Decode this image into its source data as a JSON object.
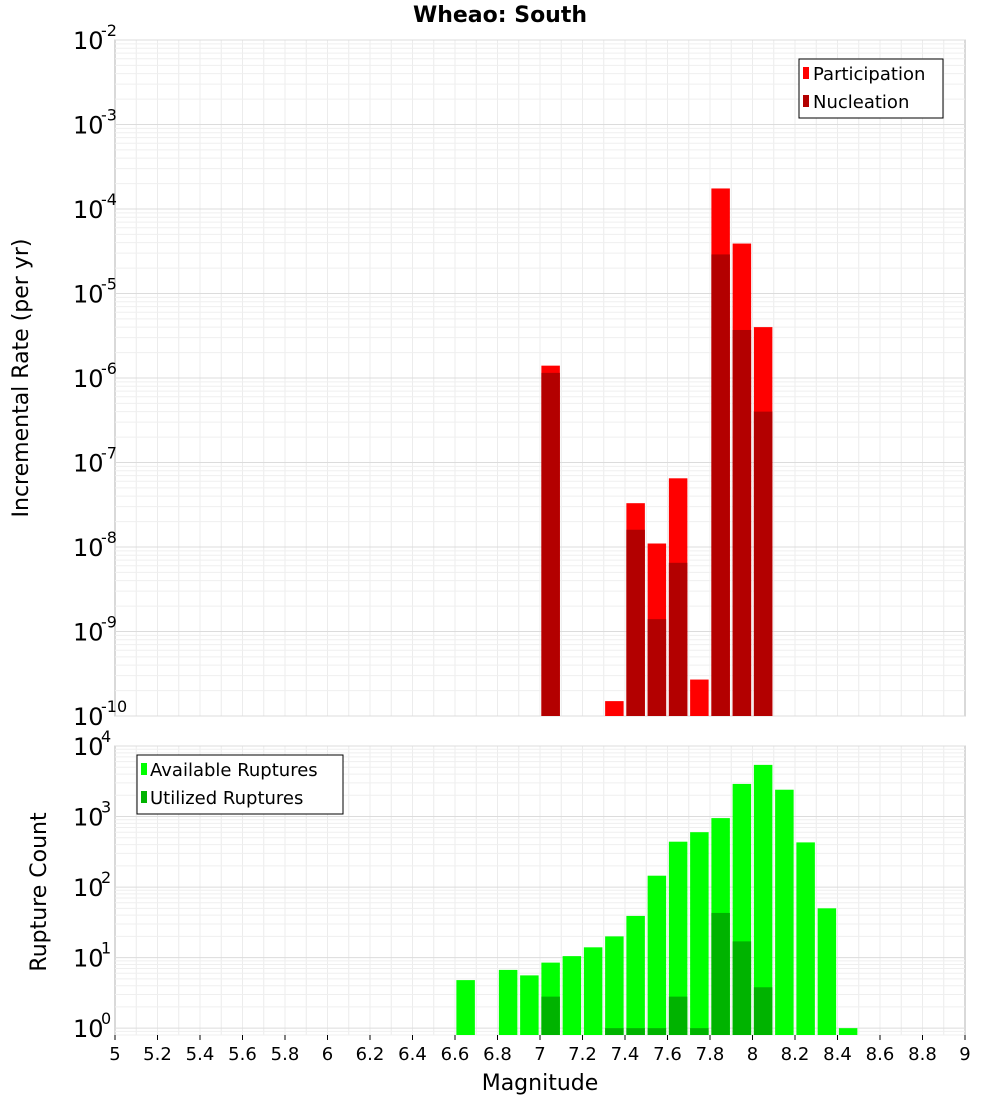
{
  "chart_data": [
    {
      "type": "bar",
      "title": "Wheao: South",
      "xlabel": "",
      "ylabel": "Incremental Rate (per yr)",
      "yscale": "log",
      "ylim": [
        1e-10,
        0.01
      ],
      "y_ticks": [
        {
          "base": "10",
          "exp": "-10",
          "value": 1e-10
        },
        {
          "base": "10",
          "exp": "-9",
          "value": 1e-09
        },
        {
          "base": "10",
          "exp": "-8",
          "value": 1e-08
        },
        {
          "base": "10",
          "exp": "-7",
          "value": 1e-07
        },
        {
          "base": "10",
          "exp": "-6",
          "value": 1e-06
        },
        {
          "base": "10",
          "exp": "-5",
          "value": 1e-05
        },
        {
          "base": "10",
          "exp": "-4",
          "value": 0.0001
        },
        {
          "base": "10",
          "exp": "-3",
          "value": 0.001
        },
        {
          "base": "10",
          "exp": "-2",
          "value": 0.01
        }
      ],
      "grid": true,
      "legend_position": "top-right",
      "series": [
        {
          "name": "Participation",
          "color": "#ff0000",
          "points": [
            {
              "x": 7.05,
              "y": 1.4e-06
            },
            {
              "x": 7.35,
              "y": 1.5e-10
            },
            {
              "x": 7.45,
              "y": 3.3e-08
            },
            {
              "x": 7.55,
              "y": 1.1e-08
            },
            {
              "x": 7.65,
              "y": 6.5e-08
            },
            {
              "x": 7.75,
              "y": 2.7e-10
            },
            {
              "x": 7.85,
              "y": 0.000175
            },
            {
              "x": 7.95,
              "y": 3.9e-05
            },
            {
              "x": 8.05,
              "y": 4e-06
            }
          ]
        },
        {
          "name": "Nucleation",
          "color": "#b30000",
          "points": [
            {
              "x": 7.05,
              "y": 1.15e-06
            },
            {
              "x": 7.45,
              "y": 1.6e-08
            },
            {
              "x": 7.55,
              "y": 1.4e-09
            },
            {
              "x": 7.65,
              "y": 6.5e-09
            },
            {
              "x": 7.85,
              "y": 2.9e-05
            },
            {
              "x": 7.95,
              "y": 3.7e-06
            },
            {
              "x": 8.05,
              "y": 4e-07
            }
          ]
        }
      ]
    },
    {
      "type": "bar",
      "title": "",
      "xlabel": "Magnitude",
      "ylabel": "Rupture Count",
      "yscale": "log",
      "ylim": [
        0.8,
        10000
      ],
      "xlim": [
        5,
        9
      ],
      "x_ticks": [
        "5",
        "5.2",
        "5.4",
        "5.6",
        "5.8",
        "6",
        "6.2",
        "6.4",
        "6.6",
        "6.8",
        "7",
        "7.2",
        "7.4",
        "7.6",
        "7.8",
        "8",
        "8.2",
        "8.4",
        "8.6",
        "8.8",
        "9"
      ],
      "y_ticks": [
        {
          "base": "10",
          "exp": "0",
          "value": 1
        },
        {
          "base": "10",
          "exp": "1",
          "value": 10
        },
        {
          "base": "10",
          "exp": "2",
          "value": 100
        },
        {
          "base": "10",
          "exp": "3",
          "value": 1000
        },
        {
          "base": "10",
          "exp": "4",
          "value": 10000
        }
      ],
      "grid": true,
      "legend_position": "top-left",
      "series": [
        {
          "name": "Available Ruptures",
          "color": "#00ff00",
          "points": [
            {
              "x": 6.65,
              "y": 4.8
            },
            {
              "x": 6.85,
              "y": 6.7
            },
            {
              "x": 6.95,
              "y": 5.6
            },
            {
              "x": 7.05,
              "y": 8.5
            },
            {
              "x": 7.15,
              "y": 10.5
            },
            {
              "x": 7.25,
              "y": 14
            },
            {
              "x": 7.35,
              "y": 20
            },
            {
              "x": 7.45,
              "y": 39
            },
            {
              "x": 7.55,
              "y": 145
            },
            {
              "x": 7.65,
              "y": 440
            },
            {
              "x": 7.75,
              "y": 600
            },
            {
              "x": 7.85,
              "y": 950
            },
            {
              "x": 7.95,
              "y": 2900
            },
            {
              "x": 8.05,
              "y": 5400
            },
            {
              "x": 8.15,
              "y": 2400
            },
            {
              "x": 8.25,
              "y": 430
            },
            {
              "x": 8.35,
              "y": 50
            },
            {
              "x": 8.45,
              "y": 1
            }
          ]
        },
        {
          "name": "Utilized Ruptures",
          "color": "#00b300",
          "points": [
            {
              "x": 7.05,
              "y": 2.8
            },
            {
              "x": 7.35,
              "y": 1
            },
            {
              "x": 7.45,
              "y": 1
            },
            {
              "x": 7.55,
              "y": 1
            },
            {
              "x": 7.65,
              "y": 2.8
            },
            {
              "x": 7.75,
              "y": 1
            },
            {
              "x": 7.85,
              "y": 43
            },
            {
              "x": 7.95,
              "y": 17
            },
            {
              "x": 8.05,
              "y": 3.8
            }
          ]
        }
      ]
    }
  ]
}
